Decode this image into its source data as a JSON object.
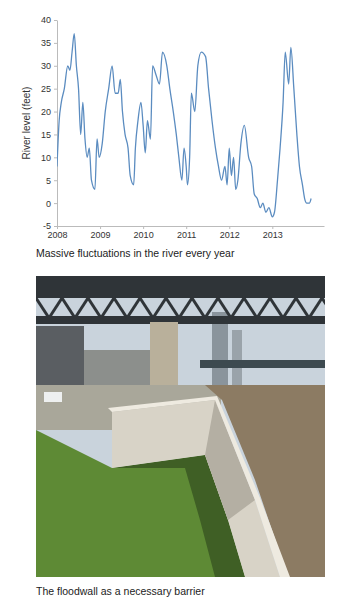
{
  "chart_data": {
    "type": "line",
    "title": "Massive fluctuations in the river every year",
    "ylabel": "River level (feet)",
    "x": [
      2008.0,
      2008.05,
      2008.1,
      2008.17,
      2008.25,
      2008.3,
      2008.35,
      2008.4,
      2008.45,
      2008.5,
      2008.55,
      2008.6,
      2008.65,
      2008.7,
      2008.75,
      2008.8,
      2008.88,
      2008.93,
      2008.98,
      2009.05,
      2009.12,
      2009.2,
      2009.28,
      2009.35,
      2009.42,
      2009.47,
      2009.52,
      2009.58,
      2009.65,
      2009.7,
      2009.78,
      2009.82,
      2009.88,
      2009.95,
      2010.0,
      2010.05,
      2010.1,
      2010.17,
      2010.22,
      2010.3,
      2010.38,
      2010.45,
      2010.55,
      2010.62,
      2010.7,
      2010.77,
      2010.83,
      2010.9,
      2010.95,
      2011.0,
      2011.03,
      2011.08,
      2011.12,
      2011.2,
      2011.27,
      2011.35,
      2011.45,
      2011.52,
      2011.6,
      2011.68,
      2011.75,
      2011.82,
      2011.9,
      2011.95,
      2012.0,
      2012.05,
      2012.1,
      2012.15,
      2012.2,
      2012.27,
      2012.35,
      2012.45,
      2012.52,
      2012.58,
      2012.65,
      2012.72,
      2012.78,
      2012.85,
      2012.92,
      2013.0,
      2013.05,
      2013.12,
      2013.18,
      2013.25,
      2013.3,
      2013.38,
      2013.43,
      2013.5,
      2013.57,
      2013.63,
      2013.7,
      2013.75,
      2013.8,
      2013.86,
      2013.9
    ],
    "values": [
      8,
      18,
      22,
      25,
      30,
      29,
      33,
      37,
      30,
      25,
      15,
      22,
      14,
      10,
      12,
      5,
      3,
      14,
      10,
      13,
      20,
      25,
      30,
      24,
      24,
      27,
      20,
      15,
      12,
      6,
      4,
      12,
      18,
      22,
      17,
      11,
      18,
      14,
      30,
      28,
      26,
      33,
      30,
      25,
      20,
      15,
      10,
      5,
      12,
      8,
      4,
      10,
      24,
      20,
      30,
      33,
      32,
      25,
      18,
      12,
      8,
      5,
      8,
      4,
      12,
      6,
      10,
      3,
      5,
      13,
      17,
      10,
      8,
      2,
      1,
      -1,
      0,
      -2,
      -1,
      -3,
      -2,
      5,
      12,
      22,
      33,
      26,
      34,
      25,
      15,
      8,
      4,
      1,
      0,
      0,
      1
    ],
    "color": "#5b8cc0",
    "xlim": [
      2008,
      2014.2
    ],
    "xticks": [
      2008,
      2009,
      2010,
      2011,
      2012,
      2013
    ],
    "ylim": [
      -5,
      40
    ],
    "yticks": [
      -5,
      0,
      5,
      10,
      15,
      20,
      25,
      30,
      35,
      40
    ],
    "grid": false
  },
  "photo": {
    "caption": "The floodwall as a necessary barrier"
  }
}
